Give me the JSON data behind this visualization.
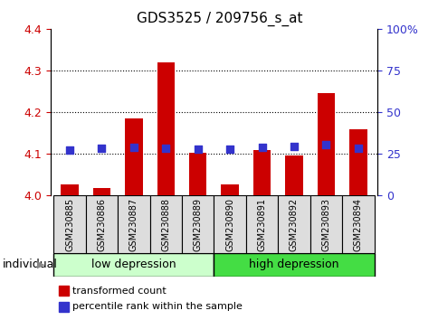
{
  "title": "GDS3525 / 209756_s_at",
  "samples": [
    "GSM230885",
    "GSM230886",
    "GSM230887",
    "GSM230888",
    "GSM230889",
    "GSM230890",
    "GSM230891",
    "GSM230892",
    "GSM230893",
    "GSM230894"
  ],
  "bar_values": [
    4.025,
    4.018,
    4.185,
    4.32,
    4.102,
    4.025,
    4.108,
    4.095,
    4.245,
    4.158
  ],
  "percentile_values": [
    4.108,
    4.112,
    4.115,
    4.113,
    4.11,
    4.11,
    4.115,
    4.118,
    4.122,
    4.112
  ],
  "ylim": [
    4.0,
    4.4
  ],
  "yticks": [
    4.0,
    4.1,
    4.2,
    4.3,
    4.4
  ],
  "right_ytick_positions": [
    4.0,
    4.1,
    4.2,
    4.3,
    4.4
  ],
  "right_ytick_labels": [
    "0",
    "25",
    "50",
    "75",
    "100%"
  ],
  "bar_color": "#cc0000",
  "dot_color": "#3333cc",
  "group1_label": "low depression",
  "group2_label": "high depression",
  "group1_color": "#ccffcc",
  "group2_color": "#44dd44",
  "legend_bar_label": "transformed count",
  "legend_dot_label": "percentile rank within the sample",
  "xlabel_label": "individual",
  "tick_color_left": "#cc0000",
  "tick_color_right": "#3333cc",
  "sample_box_color": "#dddddd",
  "dotgrid_color": [
    4.1,
    4.2,
    4.3
  ]
}
